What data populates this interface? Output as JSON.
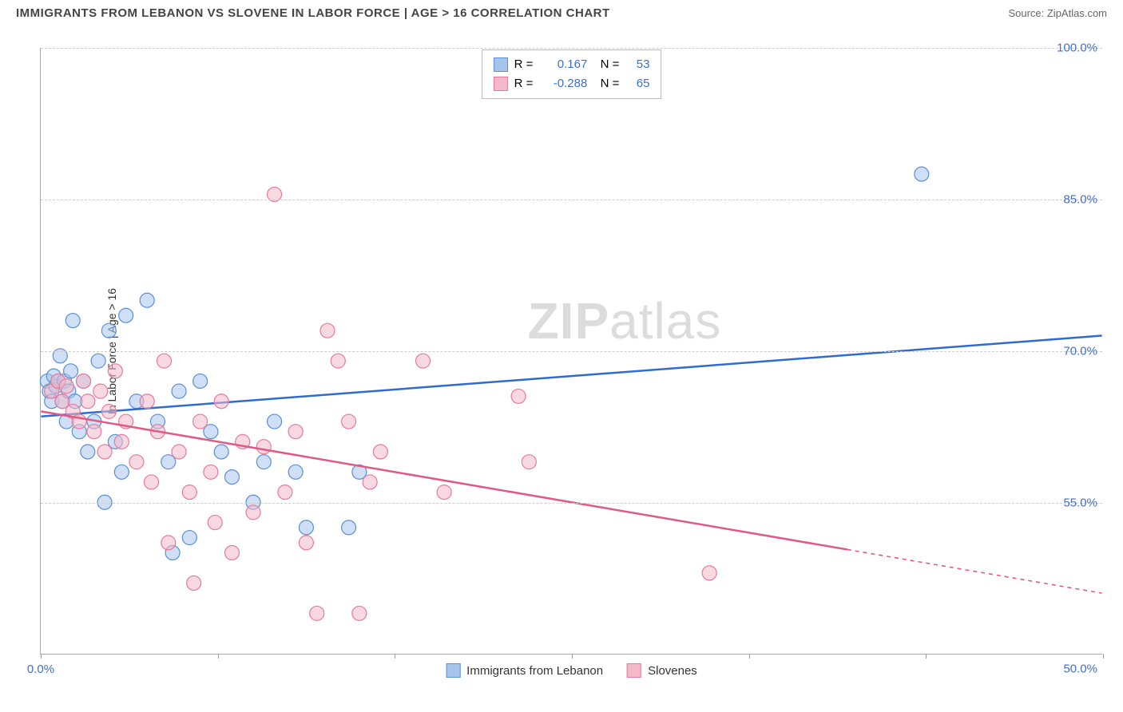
{
  "title": "IMMIGRANTS FROM LEBANON VS SLOVENE IN LABOR FORCE | AGE > 16 CORRELATION CHART",
  "source": "Source: ZipAtlas.com",
  "ylabel": "In Labor Force | Age > 16",
  "watermark_a": "ZIP",
  "watermark_b": "atlas",
  "chart": {
    "type": "scatter-with-regression",
    "xlim": [
      0,
      50
    ],
    "ylim": [
      40,
      100
    ],
    "y_ticks": [
      50,
      55,
      70,
      85,
      100
    ],
    "y_tick_labels": [
      "50.0%",
      "55.0%",
      "70.0%",
      "85.0%",
      "100.0%"
    ],
    "y_tick_positions_shown": [
      55,
      70,
      85,
      100,
      50
    ],
    "x_ticks": [
      0,
      8.33,
      16.67,
      25,
      33.33,
      41.67,
      50
    ],
    "x_labels_shown": {
      "0": "0.0%",
      "50": "50.0%"
    },
    "background_color": "#ffffff",
    "grid_color": "#cccccc",
    "axis_color": "#aaaaaa",
    "series": [
      {
        "name": "Immigrants from Lebanon",
        "fill": "#a7c5ec",
        "stroke": "#5b8fd6",
        "line_color": "#2f6bd0",
        "R": "0.167",
        "N": "53",
        "regression": {
          "x1": 0,
          "y1": 63.5,
          "x2": 50,
          "y2": 71.5,
          "dash_from_x": null
        },
        "points": [
          [
            0.3,
            67
          ],
          [
            0.4,
            66
          ],
          [
            0.5,
            65
          ],
          [
            0.6,
            67.5
          ],
          [
            0.7,
            66.5
          ],
          [
            0.8,
            67
          ],
          [
            0.9,
            69.5
          ],
          [
            1.0,
            65
          ],
          [
            1.1,
            67
          ],
          [
            1.2,
            63
          ],
          [
            1.3,
            66
          ],
          [
            1.4,
            68
          ],
          [
            1.5,
            73
          ],
          [
            1.6,
            65
          ],
          [
            1.8,
            62
          ],
          [
            2.0,
            67
          ],
          [
            2.2,
            60
          ],
          [
            2.5,
            63
          ],
          [
            2.7,
            69
          ],
          [
            3.0,
            55
          ],
          [
            3.2,
            72
          ],
          [
            3.5,
            61
          ],
          [
            3.8,
            58
          ],
          [
            4.0,
            73.5
          ],
          [
            4.5,
            65
          ],
          [
            5.0,
            75
          ],
          [
            5.5,
            63
          ],
          [
            6.0,
            59
          ],
          [
            6.2,
            50
          ],
          [
            6.5,
            66
          ],
          [
            7.0,
            51.5
          ],
          [
            7.5,
            67
          ],
          [
            8.0,
            62
          ],
          [
            8.5,
            60
          ],
          [
            9.0,
            57.5
          ],
          [
            10.0,
            55
          ],
          [
            10.5,
            59
          ],
          [
            11.0,
            63
          ],
          [
            12.0,
            58
          ],
          [
            12.5,
            52.5
          ],
          [
            14.5,
            52.5
          ],
          [
            15.0,
            58
          ],
          [
            41.5,
            87.5
          ]
        ]
      },
      {
        "name": "Slovenes",
        "fill": "#f4b9c9",
        "stroke": "#e67a9a",
        "line_color": "#e05a85",
        "R": "-0.288",
        "N": "65",
        "regression": {
          "x1": 0,
          "y1": 64,
          "x2": 50,
          "y2": 46,
          "dash_from_x": 38
        },
        "points": [
          [
            0.5,
            66
          ],
          [
            0.8,
            67
          ],
          [
            1.0,
            65
          ],
          [
            1.2,
            66.5
          ],
          [
            1.5,
            64
          ],
          [
            1.8,
            63
          ],
          [
            2.0,
            67
          ],
          [
            2.2,
            65
          ],
          [
            2.5,
            62
          ],
          [
            2.8,
            66
          ],
          [
            3.0,
            60
          ],
          [
            3.2,
            64
          ],
          [
            3.5,
            68
          ],
          [
            3.8,
            61
          ],
          [
            4.0,
            63
          ],
          [
            4.5,
            59
          ],
          [
            5.0,
            65
          ],
          [
            5.2,
            57
          ],
          [
            5.5,
            62
          ],
          [
            5.8,
            69
          ],
          [
            6.0,
            51
          ],
          [
            6.5,
            60
          ],
          [
            7.0,
            56
          ],
          [
            7.2,
            47
          ],
          [
            7.5,
            63
          ],
          [
            8.0,
            58
          ],
          [
            8.2,
            53
          ],
          [
            8.5,
            65
          ],
          [
            9.0,
            50
          ],
          [
            9.5,
            61
          ],
          [
            10.0,
            54
          ],
          [
            10.5,
            60.5
          ],
          [
            11.0,
            85.5
          ],
          [
            11.5,
            56
          ],
          [
            12.0,
            62
          ],
          [
            12.5,
            51
          ],
          [
            13.0,
            44
          ],
          [
            13.5,
            72
          ],
          [
            14.0,
            69
          ],
          [
            14.5,
            63
          ],
          [
            15.0,
            44
          ],
          [
            15.5,
            57
          ],
          [
            16.0,
            60
          ],
          [
            18.0,
            69
          ],
          [
            19.0,
            56
          ],
          [
            22.5,
            65.5
          ],
          [
            23.0,
            59
          ],
          [
            31.5,
            48
          ]
        ]
      }
    ]
  },
  "legend_bottom": [
    {
      "label": "Immigrants from Lebanon",
      "fill": "#a7c5ec",
      "stroke": "#5b8fd6"
    },
    {
      "label": "Slovenes",
      "fill": "#f4b9c9",
      "stroke": "#e67a9a"
    }
  ]
}
